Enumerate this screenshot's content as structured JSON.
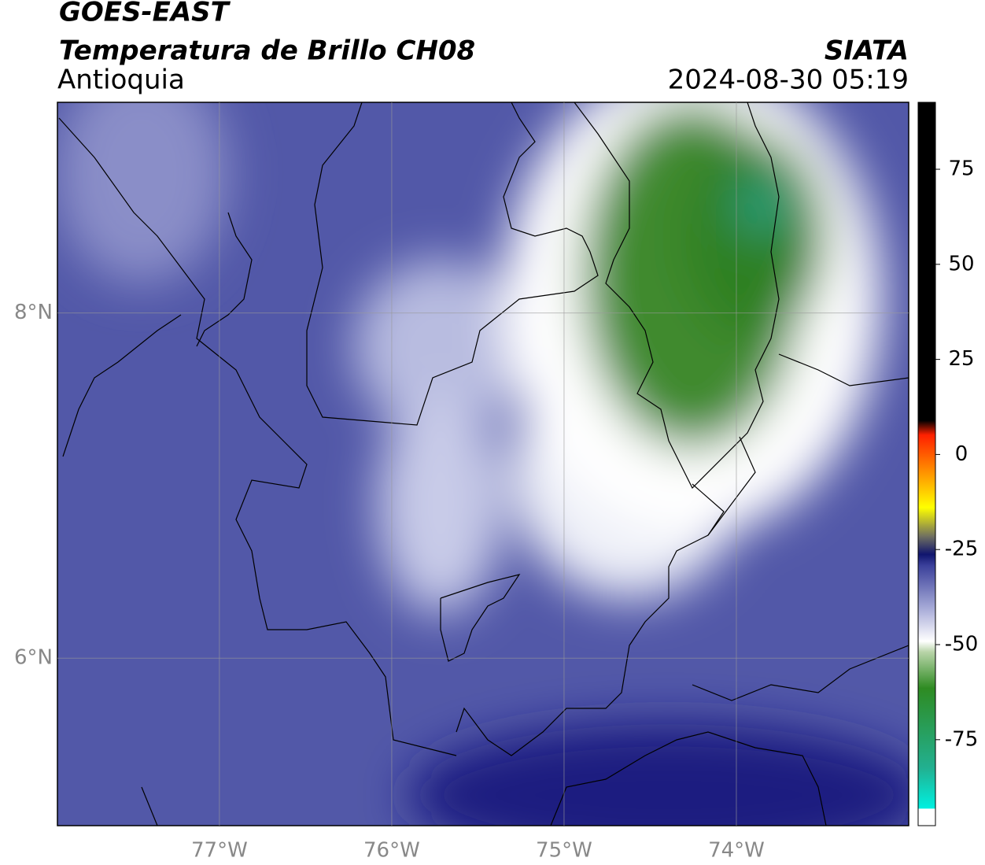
{
  "header": {
    "title": "GOES-EAST",
    "subtitle": "Temperatura de Brillo CH08",
    "region": "Antioquia",
    "source": "SIATA",
    "datetime": "2024-08-30 05:19"
  },
  "map": {
    "xlim": [
      -77.94,
      -73.0
    ],
    "ylim": [
      5.03,
      9.22
    ],
    "xticks": [
      {
        "value": -77,
        "label": "77°W"
      },
      {
        "value": -76,
        "label": "76°W"
      },
      {
        "value": -75,
        "label": "75°W"
      },
      {
        "value": -74,
        "label": "74°W"
      }
    ],
    "yticks": [
      {
        "value": 8,
        "label": "8°N"
      },
      {
        "value": 6,
        "label": "6°N"
      }
    ],
    "grid": true
  },
  "colorbar": {
    "lim": [
      -97.6,
      92.6
    ],
    "ticks": [
      75,
      50,
      25,
      0,
      -25,
      -50,
      -75
    ]
  }
}
